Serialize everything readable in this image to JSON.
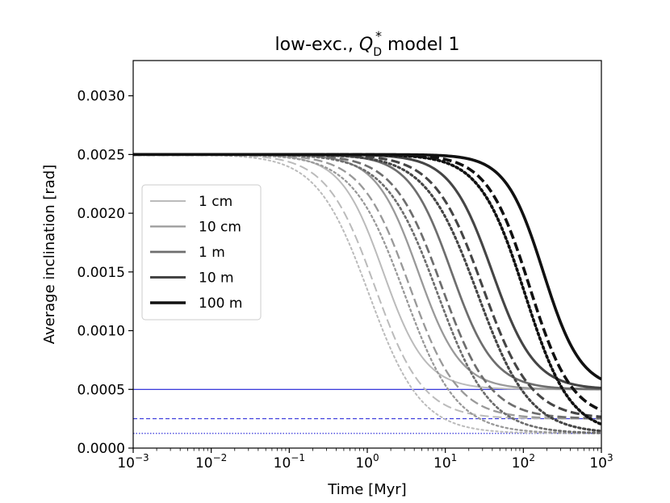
{
  "chart_data": {
    "type": "line",
    "title_prefix": "low-exc., ",
    "title_q": "Q",
    "title_sub": "D",
    "title_sup": "*",
    "title_suffix": " model 1",
    "xlabel": "Time [Myr]",
    "ylabel": "Average inclination [rad]",
    "xscale": "log",
    "xlim": [
      0.001,
      1000
    ],
    "ylim": [
      0.0,
      0.0033
    ],
    "x_ticks": [
      {
        "base": "10",
        "exp": "−3"
      },
      {
        "base": "10",
        "exp": "−2"
      },
      {
        "base": "10",
        "exp": "−1"
      },
      {
        "base": "10",
        "exp": "0"
      },
      {
        "base": "10",
        "exp": "1"
      },
      {
        "base": "10",
        "exp": "2"
      },
      {
        "base": "10",
        "exp": "3"
      }
    ],
    "y_tick_values": [
      0.0,
      0.0005,
      0.001,
      0.0015,
      0.002,
      0.0025,
      0.003
    ],
    "y_tick_labels": [
      "0.0000",
      "0.0005",
      "0.0010",
      "0.0015",
      "0.0020",
      "0.0025",
      "0.0030"
    ],
    "legend": {
      "position": "center-left",
      "entries": [
        {
          "label": "1 cm",
          "color": "#bbbbbb"
        },
        {
          "label": "10 cm",
          "color": "#999999"
        },
        {
          "label": "1 m",
          "color": "#6e6e6e"
        },
        {
          "label": "10 m",
          "color": "#454545"
        },
        {
          "label": "100 m",
          "color": "#111111"
        }
      ]
    },
    "style_widths": {
      "1 cm": 2,
      "10 cm": 2.3,
      "1 m": 2.7,
      "10 m": 3.1,
      "100 m": 3.6
    },
    "model_final": {
      "solid": 0.0005,
      "dashed": 0.00025,
      "dotted": 0.000125
    },
    "series": [
      {
        "size": "1 cm",
        "style": "solid",
        "t_half": 1.6,
        "slope": 1.6
      },
      {
        "size": "1 cm",
        "style": "dashed",
        "t_half": 1.25,
        "slope": 1.4
      },
      {
        "size": "1 cm",
        "style": "dotted",
        "t_half": 1.05,
        "slope": 1.3
      },
      {
        "size": "10 cm",
        "style": "solid",
        "t_half": 4.5,
        "slope": 1.6
      },
      {
        "size": "10 cm",
        "style": "dashed",
        "t_half": 3.5,
        "slope": 1.4
      },
      {
        "size": "10 cm",
        "style": "dotted",
        "t_half": 3.0,
        "slope": 1.3
      },
      {
        "size": "1 m",
        "style": "solid",
        "t_half": 12,
        "slope": 1.6
      },
      {
        "size": "1 m",
        "style": "dashed",
        "t_half": 9,
        "slope": 1.4
      },
      {
        "size": "1 m",
        "style": "dotted",
        "t_half": 8,
        "slope": 1.3
      },
      {
        "size": "10 m",
        "style": "solid",
        "t_half": 40,
        "slope": 1.6
      },
      {
        "size": "10 m",
        "style": "dashed",
        "t_half": 30,
        "slope": 1.4
      },
      {
        "size": "10 m",
        "style": "dotted",
        "t_half": 26,
        "slope": 1.3
      },
      {
        "size": "100 m",
        "style": "solid",
        "t_half": 180,
        "slope": 1.8
      },
      {
        "size": "100 m",
        "style": "dashed",
        "t_half": 120,
        "slope": 1.6
      },
      {
        "size": "100 m",
        "style": "dotted",
        "t_half": 105,
        "slope": 1.5
      }
    ],
    "reference_lines": [
      {
        "y": 0.0005,
        "style": "solid",
        "color": "#1f1fd6"
      },
      {
        "y": 0.00025,
        "style": "dashed",
        "color": "#1f1fd6"
      },
      {
        "y": 0.000125,
        "style": "dotted",
        "color": "#1f1fd6"
      }
    ]
  }
}
